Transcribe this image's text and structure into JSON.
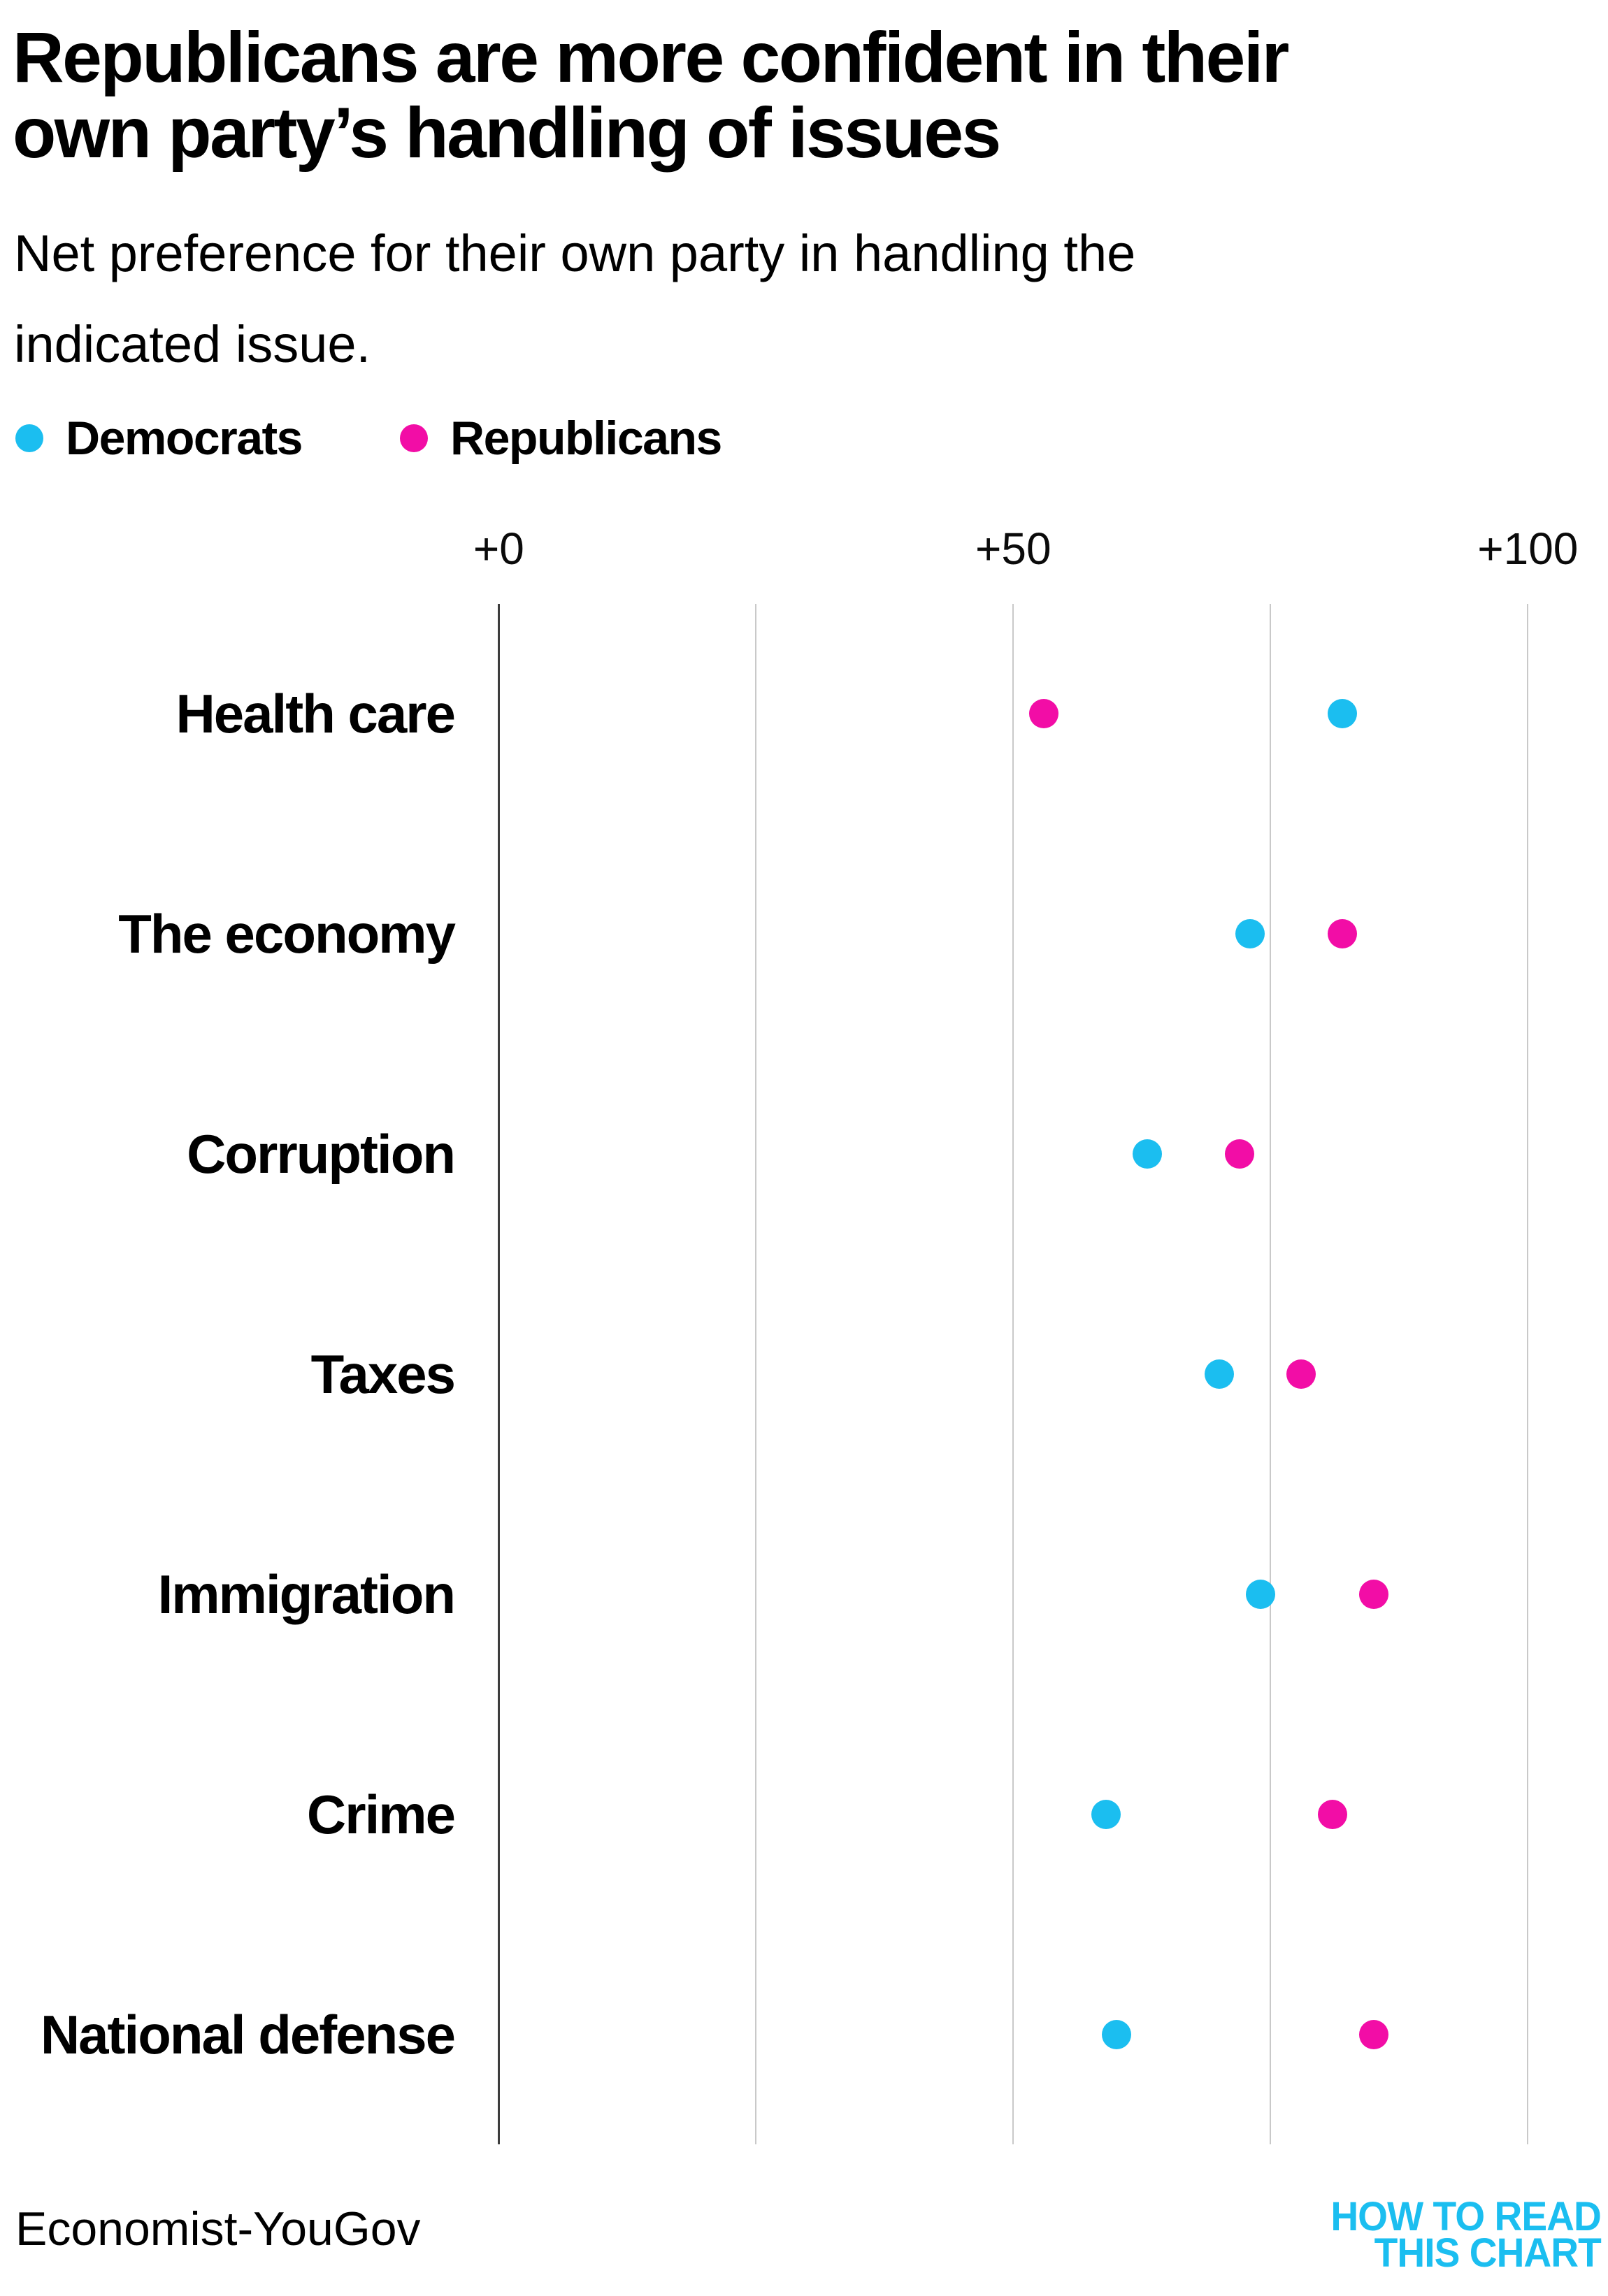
{
  "header": {
    "title": "Republicans are more confident in their\nown party’s handling of issues",
    "subtitle": "Net preference for their own party in handling the\nindicated issue."
  },
  "legend": {
    "items": [
      {
        "label": "Democrats",
        "color": "#1BBEF0"
      },
      {
        "label": "Republicans",
        "color": "#F20DA6"
      }
    ]
  },
  "chart_data": {
    "type": "scatter",
    "variant": "horizontal-dot-plot",
    "categories": [
      "Health care",
      "The economy",
      "Corruption",
      "Taxes",
      "Immigration",
      "Crime",
      "National defense"
    ],
    "series": [
      {
        "name": "Democrats",
        "color": "#1BBEF0",
        "values": [
          82,
          73,
          63,
          70,
          74,
          59,
          60
        ]
      },
      {
        "name": "Republicans",
        "color": "#F20DA6",
        "values": [
          53,
          82,
          72,
          78,
          85,
          81,
          85
        ]
      }
    ],
    "xlim": [
      0,
      100
    ],
    "xticks": [
      {
        "value": 0,
        "label": "+0"
      },
      {
        "value": 50,
        "label": "+50"
      },
      {
        "value": 100,
        "label": "+100"
      }
    ],
    "gridline_values": [
      0,
      25,
      50,
      75,
      100
    ],
    "grid": "vertical-only",
    "grid_color": "#c9c9c9",
    "zero_line_color": "#3d3d3d",
    "legend_position": "top-left"
  },
  "footer": {
    "source": "Economist-YouGov",
    "logo": {
      "line1": "HOW TO READ",
      "line2": "THIS CHART",
      "color": "#1BBEF0"
    }
  }
}
